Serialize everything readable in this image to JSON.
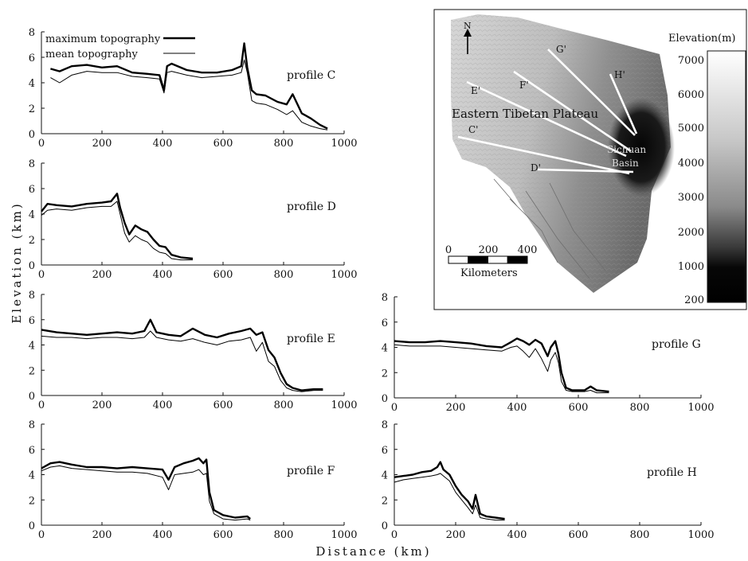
{
  "figure": {
    "ylabel": "Elevation (km)",
    "xlabel": "Distance (km)"
  },
  "legend": {
    "items": [
      {
        "label": "maximum topography",
        "style": "thick"
      },
      {
        "label": "mean topography",
        "style": "thin"
      }
    ]
  },
  "chart_data": [
    {
      "type": "line",
      "title": "profile C",
      "xlim": [
        0,
        1000
      ],
      "ylim": [
        0,
        8
      ],
      "xticks": [
        0,
        200,
        400,
        600,
        800,
        1000
      ],
      "yticks": [
        0,
        2,
        4,
        6,
        8
      ],
      "series": [
        {
          "name": "maximum topography",
          "x": [
            30,
            60,
            100,
            150,
            200,
            250,
            300,
            350,
            390,
            405,
            415,
            430,
            480,
            530,
            580,
            630,
            660,
            670,
            680,
            695,
            710,
            740,
            780,
            810,
            830,
            860,
            890,
            920,
            945
          ],
          "y": [
            5.1,
            4.9,
            5.3,
            5.4,
            5.2,
            5.3,
            4.8,
            4.7,
            4.6,
            3.4,
            5.3,
            5.5,
            5.0,
            4.8,
            4.8,
            5.0,
            5.3,
            7.1,
            5.2,
            3.4,
            3.1,
            3.0,
            2.5,
            2.3,
            3.1,
            1.6,
            1.2,
            0.7,
            0.4
          ]
        },
        {
          "name": "mean topography",
          "x": [
            30,
            60,
            100,
            150,
            200,
            250,
            300,
            350,
            390,
            405,
            415,
            430,
            480,
            530,
            580,
            630,
            660,
            670,
            680,
            695,
            710,
            740,
            780,
            810,
            830,
            860,
            890,
            920,
            945
          ],
          "y": [
            4.4,
            4.0,
            4.6,
            4.9,
            4.8,
            4.8,
            4.5,
            4.4,
            4.3,
            3.2,
            4.8,
            4.9,
            4.6,
            4.4,
            4.5,
            4.6,
            4.8,
            5.8,
            4.8,
            2.6,
            2.4,
            2.3,
            1.9,
            1.5,
            1.8,
            0.9,
            0.6,
            0.4,
            0.3
          ]
        }
      ]
    },
    {
      "type": "line",
      "title": "profile D",
      "xlim": [
        0,
        1000
      ],
      "ylim": [
        0,
        8
      ],
      "xticks": [
        0,
        200,
        400,
        600,
        800,
        1000
      ],
      "yticks": [
        0,
        2,
        4,
        6,
        8
      ],
      "series": [
        {
          "name": "maximum topography",
          "x": [
            0,
            20,
            50,
            100,
            150,
            200,
            230,
            250,
            260,
            275,
            290,
            310,
            330,
            350,
            370,
            390,
            410,
            430,
            460,
            500
          ],
          "y": [
            4.2,
            4.8,
            4.7,
            4.6,
            4.8,
            4.9,
            5.0,
            5.6,
            4.5,
            3.3,
            2.4,
            3.1,
            2.8,
            2.6,
            2.0,
            1.5,
            1.4,
            0.8,
            0.6,
            0.5
          ]
        },
        {
          "name": "mean topography",
          "x": [
            0,
            20,
            50,
            100,
            150,
            200,
            230,
            250,
            260,
            275,
            290,
            310,
            330,
            350,
            370,
            390,
            410,
            430,
            460,
            500
          ],
          "y": [
            3.9,
            4.3,
            4.4,
            4.3,
            4.5,
            4.6,
            4.6,
            5.0,
            4.0,
            2.5,
            1.8,
            2.3,
            2.0,
            1.8,
            1.3,
            1.0,
            0.9,
            0.5,
            0.4,
            0.4
          ]
        }
      ]
    },
    {
      "type": "line",
      "title": "profile E",
      "xlim": [
        0,
        1000
      ],
      "ylim": [
        0,
        8
      ],
      "xticks": [
        0,
        200,
        400,
        600,
        800,
        1000
      ],
      "yticks": [
        0,
        2,
        4,
        6,
        8
      ],
      "series": [
        {
          "name": "maximum topography",
          "x": [
            0,
            50,
            100,
            150,
            200,
            250,
            300,
            340,
            360,
            380,
            420,
            460,
            500,
            540,
            580,
            620,
            660,
            690,
            710,
            730,
            750,
            770,
            790,
            810,
            830,
            860,
            900,
            930
          ],
          "y": [
            5.2,
            5.0,
            4.9,
            4.8,
            4.9,
            5.0,
            4.9,
            5.1,
            6.0,
            5.0,
            4.8,
            4.7,
            5.3,
            4.8,
            4.6,
            4.9,
            5.1,
            5.3,
            4.8,
            5.0,
            3.6,
            3.0,
            1.8,
            0.9,
            0.6,
            0.4,
            0.5,
            0.5
          ]
        },
        {
          "name": "mean topography",
          "x": [
            0,
            50,
            100,
            150,
            200,
            250,
            300,
            340,
            360,
            380,
            420,
            460,
            500,
            540,
            580,
            620,
            660,
            690,
            710,
            730,
            750,
            770,
            790,
            810,
            830,
            860,
            900,
            930
          ],
          "y": [
            4.7,
            4.6,
            4.6,
            4.5,
            4.6,
            4.6,
            4.5,
            4.6,
            5.1,
            4.6,
            4.4,
            4.3,
            4.5,
            4.2,
            4.0,
            4.3,
            4.4,
            4.6,
            3.5,
            4.2,
            2.7,
            2.3,
            1.2,
            0.6,
            0.4,
            0.3,
            0.4,
            0.4
          ]
        }
      ]
    },
    {
      "type": "line",
      "title": "profile F",
      "xlim": [
        0,
        1000
      ],
      "ylim": [
        0,
        8
      ],
      "xticks": [
        0,
        200,
        400,
        600,
        800,
        1000
      ],
      "yticks": [
        0,
        2,
        4,
        6,
        8
      ],
      "series": [
        {
          "name": "maximum topography",
          "x": [
            0,
            30,
            60,
            100,
            150,
            200,
            250,
            300,
            350,
            400,
            420,
            440,
            470,
            500,
            520,
            535,
            545,
            555,
            570,
            600,
            640,
            680,
            690
          ],
          "y": [
            4.5,
            4.9,
            5.0,
            4.8,
            4.6,
            4.6,
            4.5,
            4.6,
            4.5,
            4.4,
            3.6,
            4.6,
            4.9,
            5.1,
            5.3,
            4.9,
            5.2,
            2.6,
            1.2,
            0.8,
            0.6,
            0.7,
            0.5
          ]
        },
        {
          "name": "mean topography",
          "x": [
            0,
            30,
            60,
            100,
            150,
            200,
            250,
            300,
            350,
            400,
            420,
            440,
            470,
            500,
            520,
            535,
            545,
            555,
            570,
            600,
            640,
            680,
            690
          ],
          "y": [
            4.3,
            4.6,
            4.7,
            4.5,
            4.4,
            4.3,
            4.2,
            4.2,
            4.1,
            3.8,
            2.8,
            4.0,
            4.1,
            4.2,
            4.4,
            4.0,
            4.1,
            1.9,
            0.9,
            0.5,
            0.4,
            0.5,
            0.4
          ]
        }
      ]
    },
    {
      "type": "line",
      "title": "profile G",
      "xlim": [
        0,
        1000
      ],
      "ylim": [
        0,
        8
      ],
      "xticks": [
        0,
        200,
        400,
        600,
        800,
        1000
      ],
      "yticks": [
        0,
        2,
        4,
        6,
        8
      ],
      "series": [
        {
          "name": "maximum topography",
          "x": [
            0,
            50,
            100,
            150,
            200,
            250,
            300,
            350,
            380,
            400,
            420,
            440,
            460,
            480,
            500,
            510,
            525,
            535,
            545,
            560,
            580,
            620,
            640,
            660,
            700
          ],
          "y": [
            4.5,
            4.4,
            4.4,
            4.5,
            4.4,
            4.3,
            4.1,
            4.0,
            4.4,
            4.7,
            4.5,
            4.2,
            4.6,
            4.3,
            3.3,
            4.0,
            4.5,
            3.5,
            2.0,
            0.8,
            0.6,
            0.6,
            0.9,
            0.6,
            0.5
          ]
        },
        {
          "name": "mean topography",
          "x": [
            0,
            50,
            100,
            150,
            200,
            250,
            300,
            350,
            380,
            400,
            420,
            440,
            460,
            480,
            500,
            510,
            525,
            535,
            545,
            560,
            580,
            620,
            640,
            660,
            700
          ],
          "y": [
            4.2,
            4.1,
            4.1,
            4.1,
            4.0,
            3.9,
            3.8,
            3.7,
            4.0,
            4.1,
            3.7,
            3.2,
            3.9,
            3.1,
            2.1,
            3.0,
            3.6,
            2.8,
            1.3,
            0.6,
            0.5,
            0.5,
            0.6,
            0.4,
            0.4
          ]
        }
      ]
    },
    {
      "type": "line",
      "title": "profile H",
      "xlim": [
        0,
        1000
      ],
      "ylim": [
        0,
        8
      ],
      "xticks": [
        0,
        200,
        400,
        600,
        800,
        1000
      ],
      "yticks": [
        0,
        2,
        4,
        6,
        8
      ],
      "series": [
        {
          "name": "maximum topography",
          "x": [
            0,
            30,
            60,
            90,
            120,
            140,
            150,
            160,
            180,
            200,
            220,
            240,
            255,
            265,
            280,
            300,
            330,
            360
          ],
          "y": [
            3.8,
            3.9,
            4.0,
            4.2,
            4.3,
            4.6,
            5.0,
            4.4,
            4.0,
            3.1,
            2.4,
            1.9,
            1.3,
            2.4,
            0.9,
            0.7,
            0.6,
            0.5
          ]
        },
        {
          "name": "mean topography",
          "x": [
            0,
            30,
            60,
            90,
            120,
            140,
            150,
            160,
            180,
            200,
            220,
            240,
            255,
            265,
            280,
            300,
            330,
            360
          ],
          "y": [
            3.4,
            3.6,
            3.7,
            3.8,
            3.9,
            4.0,
            4.1,
            3.9,
            3.5,
            2.6,
            2.0,
            1.4,
            0.9,
            1.6,
            0.6,
            0.5,
            0.4,
            0.4
          ]
        }
      ]
    }
  ],
  "map": {
    "north_label": "N",
    "region_label": "Eastern Tibetan Plateau",
    "basin_label_1": "Sichuan",
    "basin_label_2": "Basin",
    "profile_lines": [
      {
        "label": "C'"
      },
      {
        "label": "D'"
      },
      {
        "label": "E'"
      },
      {
        "label": "F'"
      },
      {
        "label": "G'"
      },
      {
        "label": "H'"
      }
    ],
    "scalebar": {
      "ticks": [
        "0",
        "200",
        "400"
      ],
      "unit": "Kilometers"
    },
    "colorbar": {
      "title": "Elevation(m)",
      "ticks": [
        "7000",
        "6000",
        "5000",
        "4000",
        "3000",
        "2000",
        "1000",
        "200"
      ]
    }
  }
}
